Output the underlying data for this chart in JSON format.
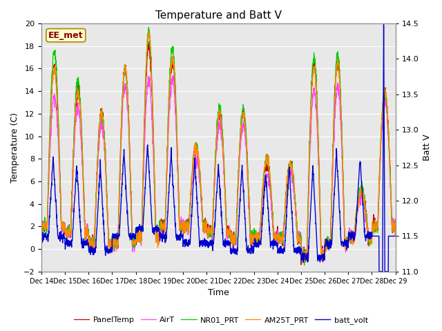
{
  "title": "Temperature and Batt V",
  "ylabel_left": "Temperature (C)",
  "ylabel_right": "Batt V",
  "xlabel": "Time",
  "annotation": "EE_met",
  "left_ylim": [
    -2,
    20
  ],
  "right_ylim": [
    11.0,
    14.5
  ],
  "plot_bg_color": "#e8e8e8",
  "xtick_labels": [
    "Dec 14",
    "Dec 15",
    "Dec 16",
    "Dec 17",
    "Dec 18",
    "Dec 19",
    "Dec 20",
    "Dec 21",
    "Dec 22",
    "Dec 23",
    "Dec 24",
    "Dec 25",
    "Dec 26",
    "Dec 27",
    "Dec 28",
    "Dec 29"
  ],
  "legend_entries": [
    "PanelTemp",
    "AirT",
    "NR01_PRT",
    "AM25T_PRT",
    "batt_volt"
  ],
  "line_colors": {
    "PanelTemp": "#cc0000",
    "AirT": "#ff44ff",
    "NR01_PRT": "#00cc00",
    "AM25T_PRT": "#ff8800",
    "batt_volt": "#0000cc"
  },
  "grid_color": "#ffffff",
  "left_yticks": [
    -2,
    0,
    2,
    4,
    6,
    8,
    10,
    12,
    14,
    16,
    18,
    20
  ],
  "right_yticks": [
    11.0,
    11.5,
    12.0,
    12.5,
    13.0,
    13.5,
    14.0,
    14.5
  ],
  "figsize": [
    6.4,
    4.8
  ],
  "dpi": 100
}
